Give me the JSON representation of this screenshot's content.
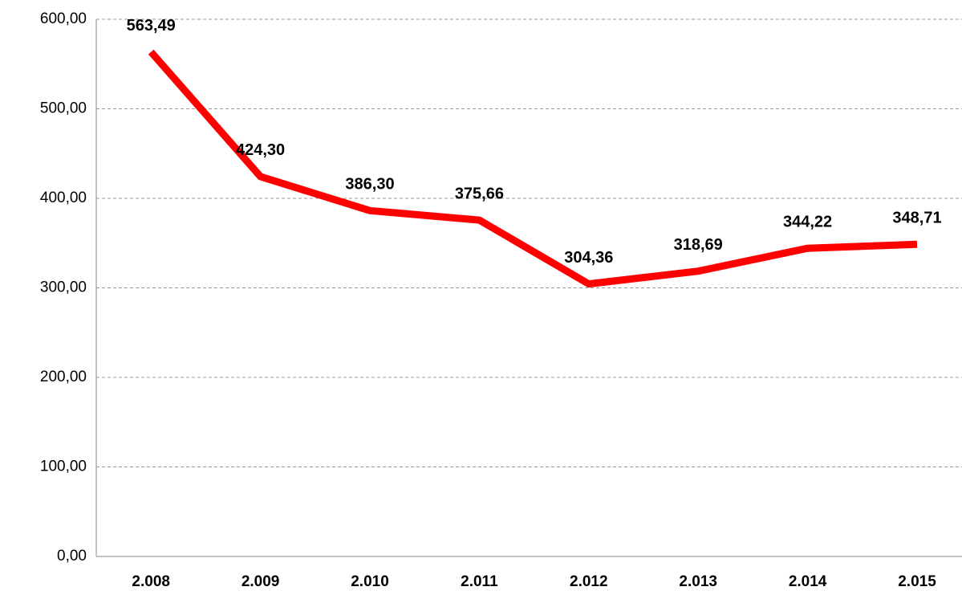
{
  "chart_data": {
    "type": "line",
    "categories": [
      "2.008",
      "2.009",
      "2.010",
      "2.011",
      "2.012",
      "2.013",
      "2.014",
      "2.015"
    ],
    "values": [
      563.49,
      424.3,
      386.3,
      375.66,
      304.36,
      318.69,
      344.22,
      348.71
    ],
    "value_labels": [
      "563,49",
      "424,30",
      "386,30",
      "375,66",
      "304,36",
      "318,69",
      "344,22",
      "348,71"
    ],
    "color": "#ff0000",
    "ylim": [
      0,
      600
    ],
    "yticks": [
      {
        "value": 0,
        "label": "0,00"
      },
      {
        "value": 100,
        "label": "100,00"
      },
      {
        "value": 200,
        "label": "200,00"
      },
      {
        "value": 300,
        "label": "300,00"
      },
      {
        "value": 400,
        "label": "400,00"
      },
      {
        "value": 500,
        "label": "500,00"
      },
      {
        "value": 600,
        "label": "600,00"
      }
    ],
    "grid": true
  }
}
